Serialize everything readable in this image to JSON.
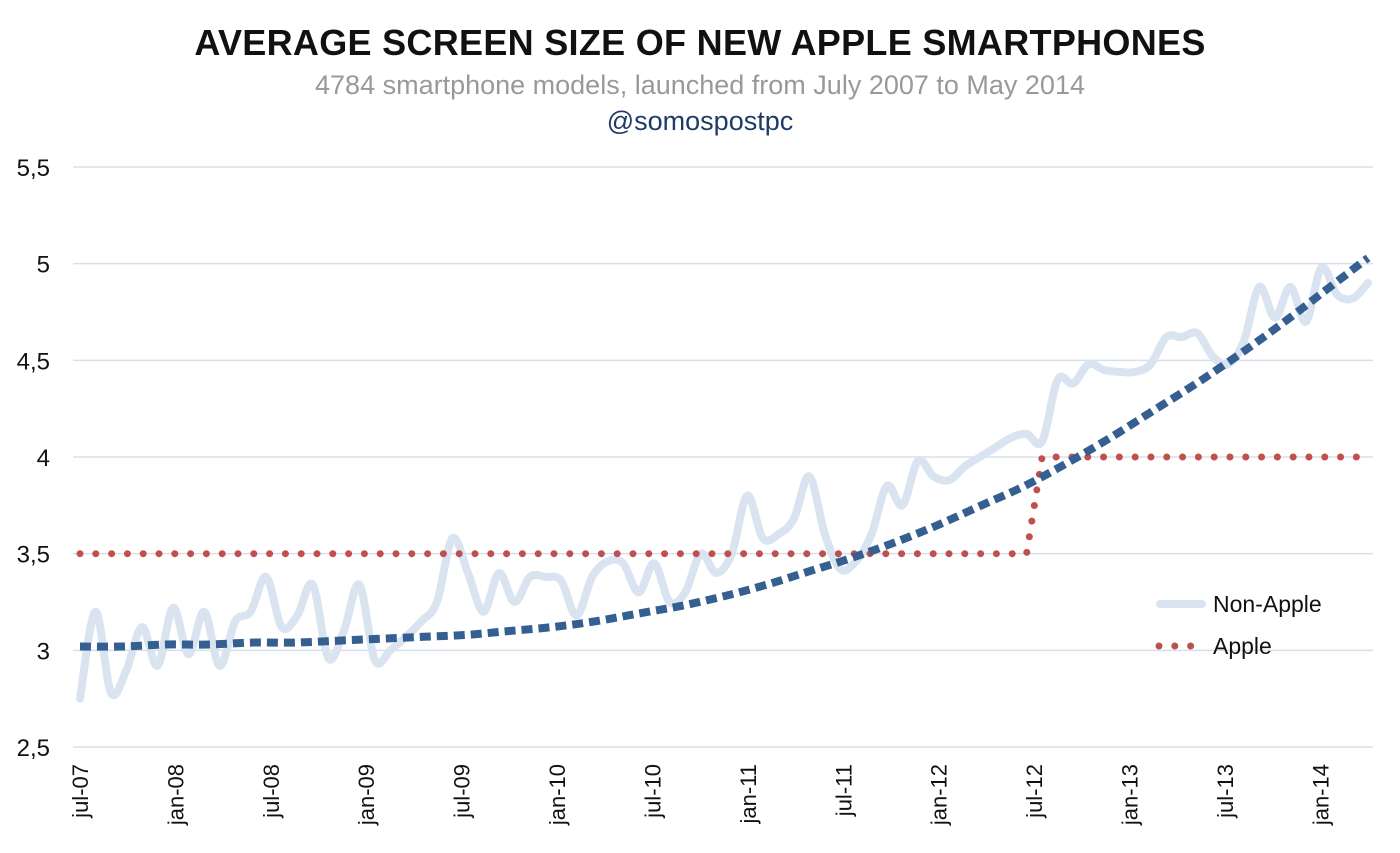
{
  "chart_data": {
    "type": "line",
    "title": "AVERAGE SCREEN SIZE OF NEW APPLE SMARTPHONES",
    "subtitle": "4784 smartphone models, launched from July 2007 to May 2014",
    "credit": "@somospostpc",
    "ylim": [
      2.5,
      5.5
    ],
    "y_ticks": [
      {
        "value": 2.5,
        "label": "2,5"
      },
      {
        "value": 3,
        "label": "3"
      },
      {
        "value": 3.5,
        "label": "3,5"
      },
      {
        "value": 4,
        "label": "4"
      },
      {
        "value": 4.5,
        "label": "4,5"
      },
      {
        "value": 5,
        "label": "5"
      },
      {
        "value": 5.5,
        "label": "5,5"
      }
    ],
    "x_tick_labels": [
      "jul-07",
      "jan-08",
      "jul-08",
      "jan-09",
      "jul-09",
      "jan-10",
      "jul-10",
      "jan-11",
      "jul-11",
      "jan-12",
      "jul-12",
      "jan-13",
      "jul-13",
      "jan-14"
    ],
    "legend_position": "right",
    "grid": true,
    "series": [
      {
        "name": "Non-Apple",
        "color": "#dae4f1",
        "style": "solid",
        "values": [
          2.75,
          3.2,
          2.78,
          2.9,
          3.12,
          2.92,
          3.22,
          2.98,
          3.2,
          2.92,
          3.15,
          3.2,
          3.38,
          3.12,
          3.18,
          3.34,
          2.96,
          3.1,
          3.34,
          2.95,
          3.0,
          3.07,
          3.15,
          3.25,
          3.58,
          3.4,
          3.2,
          3.4,
          3.25,
          3.38,
          3.38,
          3.36,
          3.18,
          3.38,
          3.46,
          3.45,
          3.3,
          3.45,
          3.25,
          3.3,
          3.5,
          3.4,
          3.5,
          3.8,
          3.58,
          3.6,
          3.68,
          3.9,
          3.6,
          3.42,
          3.46,
          3.6,
          3.85,
          3.75,
          3.98,
          3.9,
          3.88,
          3.95,
          4.0,
          4.05,
          4.1,
          4.12,
          4.08,
          4.4,
          4.38,
          4.48,
          4.45,
          4.44,
          4.44,
          4.48,
          4.62,
          4.62,
          4.64,
          4.52,
          4.48,
          4.6,
          4.88,
          4.72,
          4.88,
          4.7,
          4.98,
          4.84,
          4.82,
          4.9
        ]
      },
      {
        "name": "Apple",
        "color": "#c0504d",
        "style": "dotted",
        "values": [
          3.5,
          3.5,
          3.5,
          3.5,
          3.5,
          3.5,
          3.5,
          3.5,
          3.5,
          3.5,
          3.5,
          3.5,
          3.5,
          3.5,
          3.5,
          3.5,
          3.5,
          3.5,
          3.5,
          3.5,
          3.5,
          3.5,
          3.5,
          3.5,
          3.5,
          3.5,
          3.5,
          3.5,
          3.5,
          3.5,
          3.5,
          3.5,
          3.5,
          3.5,
          3.5,
          3.5,
          3.5,
          3.5,
          3.5,
          3.5,
          3.5,
          3.5,
          3.5,
          3.5,
          3.5,
          3.5,
          3.5,
          3.5,
          3.5,
          3.5,
          3.5,
          3.5,
          3.5,
          3.5,
          3.5,
          3.5,
          3.5,
          3.5,
          3.5,
          3.5,
          3.5,
          3.5,
          4.0,
          4.0,
          4.0,
          4.0,
          4.0,
          4.0,
          4.0,
          4.0,
          4.0,
          4.0,
          4.0,
          4.0,
          4.0,
          4.0,
          4.0,
          4.0,
          4.0,
          4.0,
          4.0,
          4.0,
          4.0,
          4.0
        ]
      },
      {
        "style": "dashed",
        "color": "#355f91",
        "values": [
          3.02,
          3.02,
          3.03,
          3.03,
          3.04,
          3.04,
          3.05,
          3.06,
          3.07,
          3.08,
          3.1,
          3.12,
          3.15,
          3.19,
          3.23,
          3.28,
          3.34,
          3.41,
          3.48,
          3.56,
          3.65,
          3.75,
          3.85,
          3.97,
          4.1,
          4.24,
          4.38,
          4.53,
          4.69,
          4.86,
          5.03
        ]
      }
    ]
  },
  "colors": {
    "grid": "#d6e0ec",
    "title": "#111111",
    "subtitle": "#999999",
    "credit": "#1f3c66"
  }
}
